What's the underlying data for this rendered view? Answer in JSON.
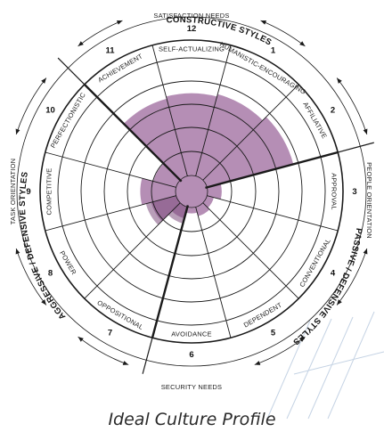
{
  "caption": "Ideal Culture Profile",
  "colors": {
    "profile_fill": "#a87aa8",
    "profile_dark": "#7d4f7d",
    "lines": "#1a1a1a",
    "deco_lines": "#c5d3e4"
  },
  "cluster_labels": {
    "constructive": "CONSTRUCTIVE STYLES",
    "passive": "PASSIVE / DEFENSIVE STYLES",
    "aggressive": "AGGRESSIVE / DEFENSIVE STYLES"
  },
  "needs_labels": {
    "satisfaction": "SATISFACTION NEEDS",
    "security": "SECURITY NEEDS",
    "task": "TASK ORIENTATION",
    "people": "PEOPLE ORIENTATION"
  },
  "segments": [
    {
      "number": "1",
      "label": "HUMANISTIC-ENCOURAGING",
      "profile": 0.72
    },
    {
      "number": "2",
      "label": "AFFILIATIVE",
      "profile": 0.76
    },
    {
      "number": "3",
      "label": "APPROVAL",
      "profile": 0.12
    },
    {
      "number": "4",
      "label": "CONVENTIONAL",
      "profile": 0.06
    },
    {
      "number": "5",
      "label": "DEPENDENT",
      "profile": 0.08
    },
    {
      "number": "6",
      "label": "AVOIDANCE",
      "profile": 0.05
    },
    {
      "number": "7",
      "label": "OPPOSITIONAL",
      "profile": 0.1
    },
    {
      "number": "8",
      "label": "POWER",
      "profile": 0.22
    },
    {
      "number": "9",
      "label": "COMPETITIVE",
      "profile": 0.3
    },
    {
      "number": "10",
      "label": "PERFECTIONISTIC",
      "profile": 0.2
    },
    {
      "number": "11",
      "label": "ACHIEVEMENT",
      "profile": 0.68
    },
    {
      "number": "12",
      "label": "SELF-ACTUALIZING",
      "profile": 0.7
    }
  ]
}
